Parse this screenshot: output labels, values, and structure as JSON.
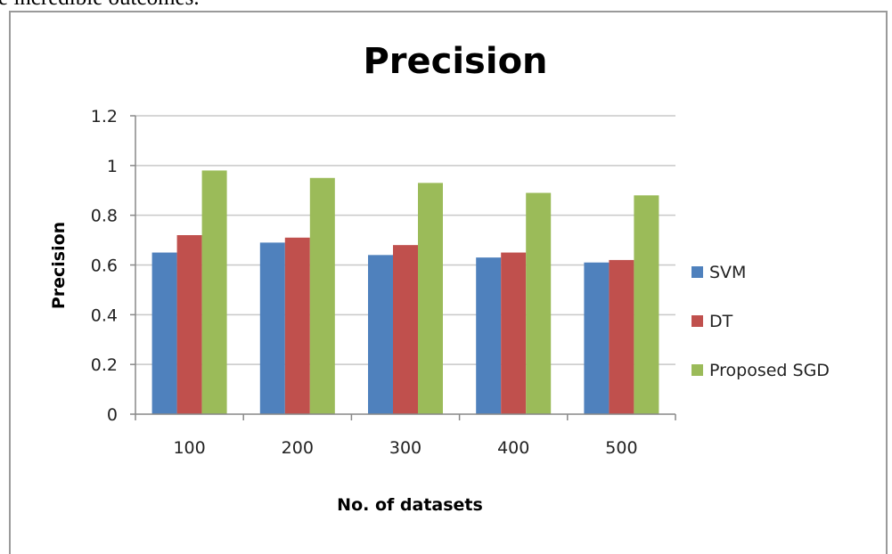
{
  "page_text": {
    "fragment": "e incredible outcomes."
  },
  "chart_data": {
    "type": "bar",
    "title": "Precision",
    "xlabel": "No. of datasets",
    "ylabel": "Precision",
    "categories": [
      "100",
      "200",
      "300",
      "400",
      "500"
    ],
    "ylim": [
      0,
      1.2
    ],
    "yticks": [
      "0",
      "0.2",
      "0.4",
      "0.6",
      "0.8",
      "1",
      "1.2"
    ],
    "grid": true,
    "legend_position": "right",
    "series": [
      {
        "name": "SVM",
        "color": "#4f81bd",
        "values": [
          0.65,
          0.69,
          0.64,
          0.63,
          0.61
        ]
      },
      {
        "name": "DT",
        "color": "#c0504d",
        "values": [
          0.72,
          0.71,
          0.68,
          0.65,
          0.62
        ]
      },
      {
        "name": "Proposed SGD",
        "color": "#9bbb59",
        "values": [
          0.98,
          0.95,
          0.93,
          0.89,
          0.88
        ]
      }
    ]
  }
}
